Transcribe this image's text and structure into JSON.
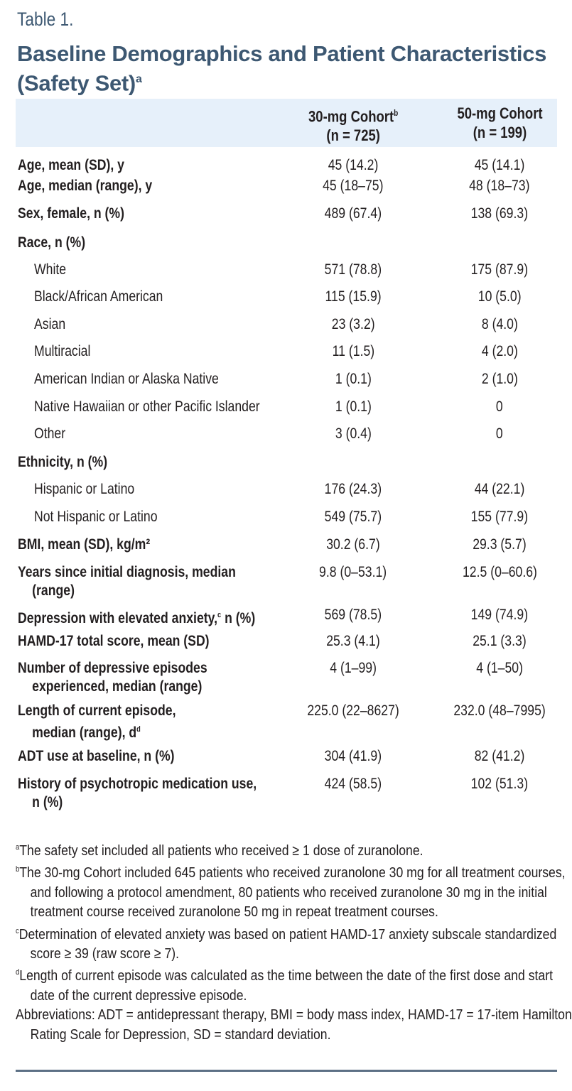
{
  "table_label": "Table 1.",
  "title": "Baseline Demographics and Patient Characteristics (Safety Set)",
  "title_note": "a",
  "columns": [
    {
      "label": "30-mg Cohort",
      "note": "b",
      "n": "(n = 725)"
    },
    {
      "label": "50-mg Cohort",
      "note": "",
      "n": "(n = 199)"
    }
  ],
  "rows": [
    {
      "label": "Age, mean (SD), y",
      "bold": true,
      "v1": "45 (14.2)",
      "v2": "45 (14.1)"
    },
    {
      "label": "Age, median (range), y",
      "bold": true,
      "v1": "45 (18–75)",
      "v2": "48 (18–73)"
    },
    {
      "label": "Sex, female, n (%)",
      "bold": true,
      "v1": "489 (67.4)",
      "v2": "138 (69.3)"
    },
    {
      "label": "Race, n (%)",
      "bold": true,
      "v1": "",
      "v2": ""
    },
    {
      "label": "White",
      "indent": true,
      "v1": "571 (78.8)",
      "v2": "175 (87.9)"
    },
    {
      "label": "Black/African American",
      "indent": true,
      "v1": "115 (15.9)",
      "v2": "10 (5.0)"
    },
    {
      "label": "Asian",
      "indent": true,
      "v1": "23 (3.2)",
      "v2": "8 (4.0)"
    },
    {
      "label": "Multiracial",
      "indent": true,
      "v1": "11 (1.5)",
      "v2": "4 (2.0)"
    },
    {
      "label": "American Indian or Alaska Native",
      "indent": true,
      "v1": "1 (0.1)",
      "v2": "2 (1.0)"
    },
    {
      "label": "Native Hawaiian or other Pacific Islander",
      "indent": true,
      "v1": "1 (0.1)",
      "v2": "0"
    },
    {
      "label": "Other",
      "indent": true,
      "v1": "3 (0.4)",
      "v2": "0"
    },
    {
      "label": "Ethnicity, n (%)",
      "bold": true,
      "v1": "",
      "v2": ""
    },
    {
      "label": "Hispanic or Latino",
      "indent": true,
      "v1": "176 (24.3)",
      "v2": "44 (22.1)"
    },
    {
      "label": "Not Hispanic or Latino",
      "indent": true,
      "v1": "549 (75.7)",
      "v2": "155 (77.9)"
    },
    {
      "label": "BMI, mean (SD), kg/m²",
      "bold": true,
      "v1": "30.2 (6.7)",
      "v2": "29.3 (5.7)"
    },
    {
      "label": "Years since initial diagnosis, median",
      "label2": "(range)",
      "bold": true,
      "v1": "9.8 (0–53.1)",
      "v2": "12.5 (0–60.6)"
    },
    {
      "label": "Depression with elevated anxiety,",
      "note": "c",
      "label_after": " n (%)",
      "bold": true,
      "v1": "569 (78.5)",
      "v2": "149 (74.9)"
    },
    {
      "label": "HAMD-17 total score, mean (SD)",
      "bold": true,
      "v1": "25.3 (4.1)",
      "v2": "25.1 (3.3)"
    },
    {
      "label": "Number of depressive episodes",
      "label2": "experienced, median (range)",
      "bold": true,
      "v1": "4 (1–99)",
      "v2": "4 (1–50)"
    },
    {
      "label": "Length of current episode,",
      "label2": "median (range), d",
      "note2": "d",
      "bold": true,
      "v1": "225.0 (22–8627)",
      "v2": "232.0 (48–7995)"
    },
    {
      "label": "ADT use at baseline, n (%)",
      "bold": true,
      "v1": "304 (41.9)",
      "v2": "82 (41.2)"
    },
    {
      "label": "History of psychotropic medication use,",
      "label2": "n (%)",
      "bold": true,
      "v1": "424 (58.5)",
      "v2": "102 (51.3)"
    }
  ],
  "footnotes": [
    {
      "mark": "a",
      "text": "The safety set included all patients who received ≥ 1 dose of zuranolone."
    },
    {
      "mark": "b",
      "text": "The 30-mg Cohort included 645 patients who received zuranolone 30 mg for all treatment courses, and following a protocol amendment, 80 patients who received zuranolone 30 mg in the initial treatment course received zuranolone 50 mg in repeat treatment courses."
    },
    {
      "mark": "c",
      "text": "Determination of elevated anxiety was based on patient HAMD-17 anxiety subscale standardized score ≥ 39 (raw score ≥ 7)."
    },
    {
      "mark": "d",
      "text": "Length of current episode was calculated as the time between the date of the first dose and start date of the current depressive episode."
    },
    {
      "mark": "",
      "text": "Abbreviations: ADT = antidepressant therapy, BMI = body mass index, HAMD-17 = 17-item Hamilton Rating Scale for Depression, SD = standard deviation."
    }
  ],
  "colors": {
    "title": "#3d5872",
    "header_band": "#e6f0fa",
    "rule": "#5d7085"
  }
}
